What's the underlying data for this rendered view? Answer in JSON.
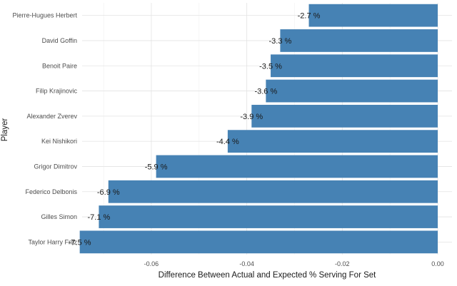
{
  "chart_data": {
    "type": "bar",
    "orientation": "horizontal",
    "title": "",
    "xlabel": "Difference Between Actual and Expected % Serving For Set",
    "ylabel": "Player",
    "xlim": [
      -0.0745,
      0.0
    ],
    "grid": true,
    "bar_color": "#4682b4",
    "categories": [
      "Pierre-Hugues Herbert",
      "David Goffin",
      "Benoit Paire",
      "Filip Krajinovic",
      "Alexander Zverev",
      "Kei Nishikori",
      "Grigor Dimitrov",
      "Federico Delbonis",
      "Gilles Simon",
      "Taylor Harry Fritz"
    ],
    "values": [
      -0.027,
      -0.033,
      -0.035,
      -0.036,
      -0.039,
      -0.044,
      -0.059,
      -0.069,
      -0.071,
      -0.075
    ],
    "data_labels": [
      "-2.7 %",
      "-3.3 %",
      "-3.5 %",
      "-3.6 %",
      "-3.9 %",
      "-4.4 %",
      "-5.9 %",
      "-6.9 %",
      "-7.1 %",
      "-7.5 %"
    ],
    "xticks": [
      -0.06,
      -0.04,
      -0.02,
      0.0
    ],
    "xtick_labels": [
      "-0.06",
      "-0.04",
      "-0.02",
      "0.00"
    ]
  }
}
